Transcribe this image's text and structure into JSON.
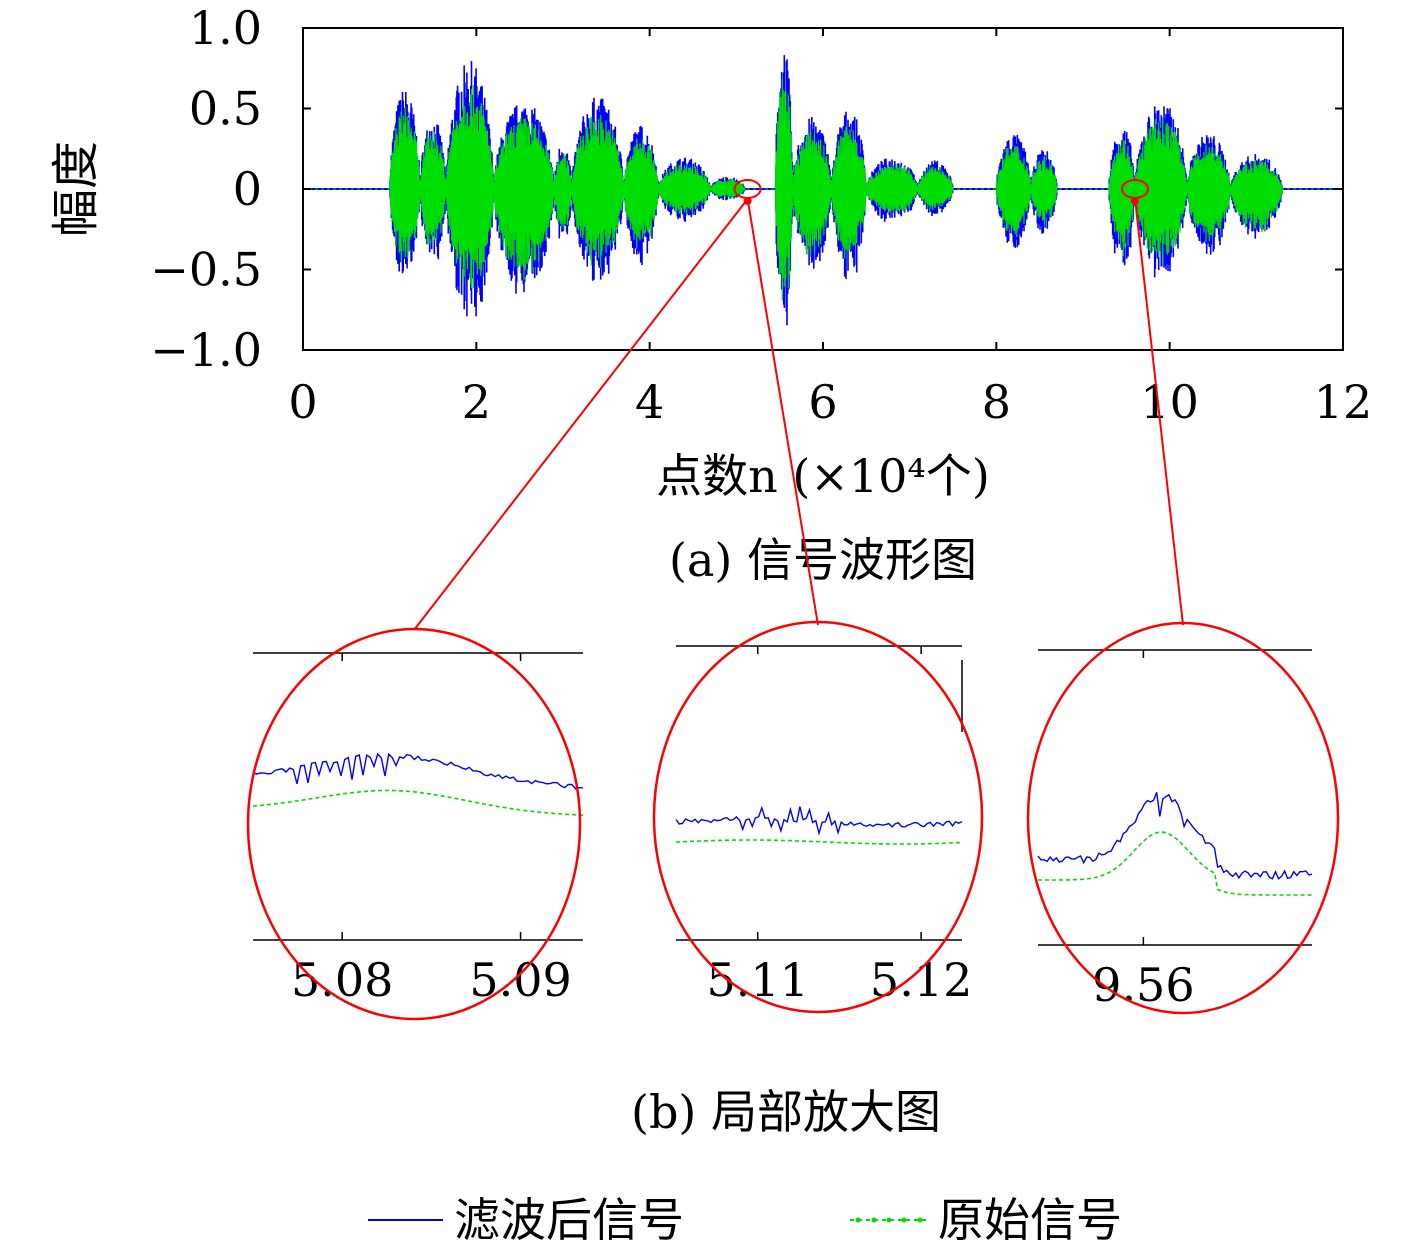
{
  "chart_data": [
    {
      "type": "line",
      "subtitle": "(a) 信号波形图",
      "xlabel": "点数n (×10⁴个)",
      "ylabel": "幅度",
      "xlim": [
        0,
        12
      ],
      "ylim": [
        -1.0,
        1.0
      ],
      "xticks": [
        0,
        2,
        4,
        6,
        8,
        10,
        12
      ],
      "yticks": [
        1.0,
        0.5,
        0,
        -0.5,
        -1.0
      ],
      "ytick_labels": [
        "1.0",
        "0.5",
        "0",
        "−0.5",
        "−1.0"
      ],
      "grid": false,
      "x_unit_note": "x in 10^4 samples",
      "bursts": [
        {
          "start": 1.0,
          "end": 1.35,
          "pos": 0.63,
          "neg": -0.6
        },
        {
          "start": 1.35,
          "end": 1.65,
          "pos": 0.45,
          "neg": -0.5
        },
        {
          "start": 1.65,
          "end": 2.2,
          "pos": 0.8,
          "neg": -0.88
        },
        {
          "start": 2.2,
          "end": 2.9,
          "pos": 0.55,
          "neg": -0.72
        },
        {
          "start": 2.9,
          "end": 3.1,
          "pos": 0.3,
          "neg": -0.4
        },
        {
          "start": 3.1,
          "end": 3.7,
          "pos": 0.58,
          "neg": -0.62
        },
        {
          "start": 3.7,
          "end": 4.1,
          "pos": 0.4,
          "neg": -0.5
        },
        {
          "start": 4.1,
          "end": 4.7,
          "pos": 0.2,
          "neg": -0.22
        },
        {
          "start": 4.7,
          "end": 5.1,
          "pos": 0.08,
          "neg": -0.08
        },
        {
          "start": 5.45,
          "end": 5.65,
          "pos": 0.9,
          "neg": -0.95
        },
        {
          "start": 5.65,
          "end": 6.1,
          "pos": 0.45,
          "neg": -0.55
        },
        {
          "start": 6.1,
          "end": 6.5,
          "pos": 0.5,
          "neg": -0.6
        },
        {
          "start": 6.5,
          "end": 7.1,
          "pos": 0.2,
          "neg": -0.22
        },
        {
          "start": 7.1,
          "end": 7.5,
          "pos": 0.18,
          "neg": -0.18
        },
        {
          "start": 8.0,
          "end": 8.4,
          "pos": 0.35,
          "neg": -0.4
        },
        {
          "start": 8.4,
          "end": 8.7,
          "pos": 0.25,
          "neg": -0.3
        },
        {
          "start": 9.3,
          "end": 9.6,
          "pos": 0.4,
          "neg": -0.55
        },
        {
          "start": 9.6,
          "end": 10.2,
          "pos": 0.55,
          "neg": -0.6
        },
        {
          "start": 10.2,
          "end": 10.7,
          "pos": 0.35,
          "neg": -0.45
        },
        {
          "start": 10.7,
          "end": 11.3,
          "pos": 0.22,
          "neg": -0.35
        }
      ],
      "series": [
        {
          "name": "滤波后信号",
          "color": "#0000ff",
          "style": "solid"
        },
        {
          "name": "原始信号",
          "color": "#00dd00",
          "style": "dotted"
        }
      ],
      "zoom_markers": [
        5.13,
        9.6
      ]
    },
    {
      "type": "line",
      "subtitle": "(b) 局部放大图",
      "panels": [
        {
          "xlim": [
            5.075,
            5.0935
          ],
          "xticks": [
            5.08,
            5.09
          ],
          "xtick_labels": [
            "5.08",
            "5.09"
          ],
          "shape": "hump"
        },
        {
          "xlim": [
            5.105,
            5.1225
          ],
          "xticks": [
            5.11,
            5.12
          ],
          "xtick_labels": [
            "5.11",
            "5.12"
          ],
          "shape": "flat"
        },
        {
          "xlim": [
            9.555,
            9.568
          ],
          "xticks": [
            9.56
          ],
          "xtick_labels": [
            "9.56"
          ],
          "shape": "peak"
        }
      ]
    }
  ],
  "legend": {
    "items": [
      {
        "label": "滤波后信号",
        "color": "#0000ff"
      },
      {
        "label": "原始信号",
        "color": "#00dd00"
      }
    ],
    "placement": "bottom"
  },
  "colors": {
    "filtered": "#0000ff",
    "original": "#00dd00",
    "highlight": "#ff0000",
    "axis": "#000000"
  }
}
